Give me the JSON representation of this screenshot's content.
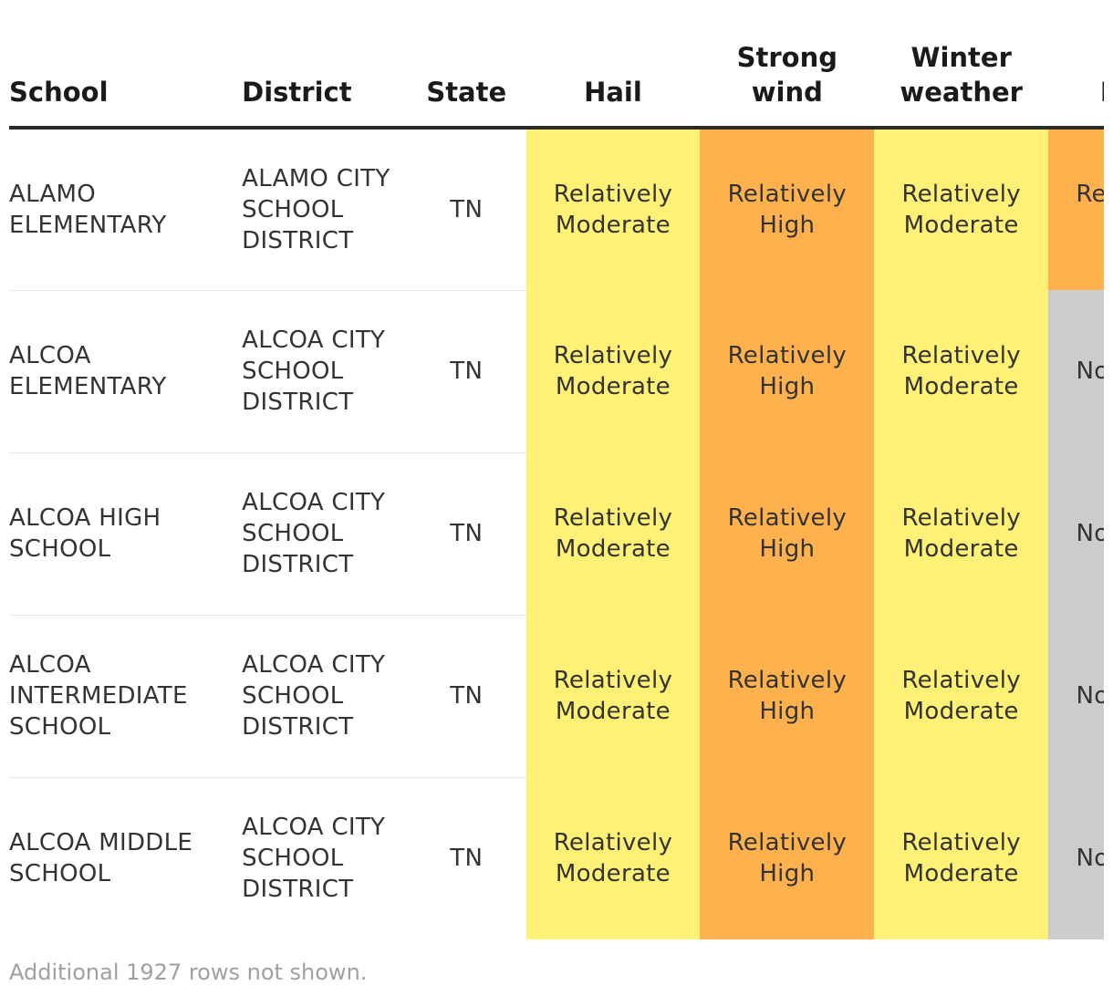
{
  "table": {
    "headers": {
      "school": "School",
      "district": "District",
      "state": "State",
      "hail": "Hail",
      "strong_wind_line1": "Strong",
      "strong_wind_line2": "wind",
      "winter_line1": "Winter",
      "winter_line2": "weather",
      "heat": "Heat"
    },
    "level_colors": {
      "Relatively Moderate": "#fff176",
      "Relatively High": "#ffb14e",
      "No Rating": "#cccccc"
    },
    "rows": [
      {
        "school": "ALAMO ELEMENTARY",
        "district": "ALAMO CITY SCHOOL DISTRICT",
        "state": "TN",
        "hail": "Relatively Moderate",
        "strong_wind": "Relatively High",
        "winter_weather": "Relatively Moderate",
        "heat": "Relatively High"
      },
      {
        "school": "ALCOA ELEMENTARY",
        "district": "ALCOA CITY SCHOOL DISTRICT",
        "state": "TN",
        "hail": "Relatively Moderate",
        "strong_wind": "Relatively High",
        "winter_weather": "Relatively Moderate",
        "heat": "No Rating"
      },
      {
        "school": "ALCOA HIGH SCHOOL",
        "district": "ALCOA CITY SCHOOL DISTRICT",
        "state": "TN",
        "hail": "Relatively Moderate",
        "strong_wind": "Relatively High",
        "winter_weather": "Relatively Moderate",
        "heat": "No Rating"
      },
      {
        "school": "ALCOA INTERMEDIATE SCHOOL",
        "district": "ALCOA CITY SCHOOL DISTRICT",
        "state": "TN",
        "hail": "Relatively Moderate",
        "strong_wind": "Relatively High",
        "winter_weather": "Relatively Moderate",
        "heat": "No Rating"
      },
      {
        "school": "ALCOA MIDDLE SCHOOL",
        "district": "ALCOA CITY SCHOOL DISTRICT",
        "state": "TN",
        "hail": "Relatively Moderate",
        "strong_wind": "Relatively High",
        "winter_weather": "Relatively Moderate",
        "heat": "No Rating"
      }
    ],
    "footer_note": "Additional 1927 rows not shown."
  }
}
